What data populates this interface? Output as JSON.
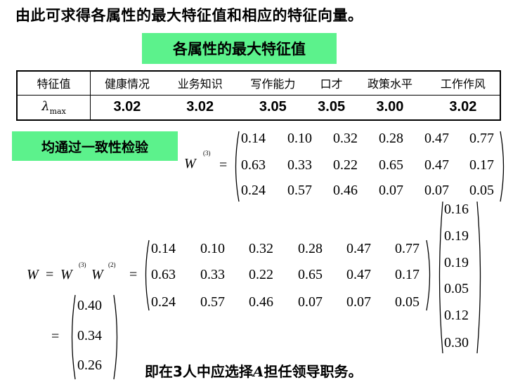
{
  "title": "由此可求得各属性的最大特征值和相应的特征向量。",
  "banner_max_eig": "各属性的最大特征值",
  "table": {
    "row_header_label": "特征值",
    "lambda_symbol": "λ",
    "lambda_subscript": "max",
    "columns": [
      "健康情况",
      "业务知识",
      "写作能力",
      "口才",
      "政策水平",
      "工作作风"
    ],
    "values": [
      "3.02",
      "3.02",
      "3.05",
      "3.05",
      "3.00",
      "3.02"
    ]
  },
  "banner_consistency": "均通过一致性检验",
  "w3": {
    "symbol": "W",
    "sup": "(3)",
    "eq": "=",
    "rows": [
      [
        "0.14",
        "0.10",
        "0.32",
        "0.28",
        "0.47",
        "0.77"
      ],
      [
        "0.63",
        "0.33",
        "0.22",
        "0.65",
        "0.47",
        "0.17"
      ],
      [
        "0.24",
        "0.57",
        "0.46",
        "0.07",
        "0.07",
        "0.05"
      ]
    ]
  },
  "product": {
    "lhs_w": "W",
    "eq1": "=",
    "w3": "W",
    "sup3": "(3)",
    "w2": "W",
    "sup2": "(2)",
    "eq2": "=",
    "vector": [
      "0.16",
      "0.19",
      "0.19",
      "0.05",
      "0.12",
      "0.30"
    ],
    "eq3": "=",
    "result": [
      "0.40",
      "0.34",
      "0.26"
    ]
  },
  "conclusion": {
    "prefix": "即在3人中应选择",
    "candidate": "A",
    "suffix": "担任领导职务。"
  }
}
